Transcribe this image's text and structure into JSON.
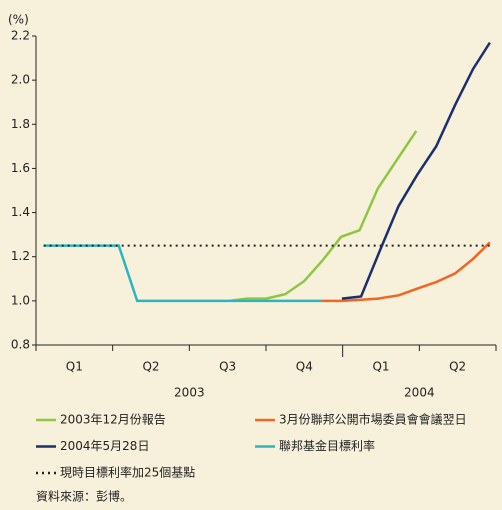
{
  "chart_data": {
    "type": "line",
    "y_unit": "(%)",
    "categories": [
      "Q1",
      "Q2",
      "Q3",
      "Q4",
      "Q1",
      "Q2"
    ],
    "year_labels": [
      "2003",
      "2004"
    ],
    "xlim": [
      0,
      6
    ],
    "ylim": [
      0.8,
      2.2
    ],
    "yticks": [
      0.8,
      {
        "value": 1.0,
        "label": "1.0"
      },
      1.2,
      1.4,
      1.6,
      1.8,
      {
        "value": 2.0,
        "label": "2.0"
      },
      2.2
    ],
    "series": [
      {
        "name": "2003年12月份報告",
        "color": "#8dc63f",
        "x": [
          2.52,
          2.75,
          3.0,
          3.25,
          3.5,
          3.73,
          3.98,
          4.22,
          4.46,
          4.71,
          4.96
        ],
        "values": [
          1.0,
          1.01,
          1.01,
          1.03,
          1.09,
          1.18,
          1.29,
          1.32,
          1.51,
          1.64,
          1.77
        ]
      },
      {
        "name": "3月份聯邦公開市場委員會會議翌日",
        "color": "#f26522",
        "x": [
          3.73,
          3.99,
          4.24,
          4.46,
          4.73,
          4.97,
          5.22,
          5.47,
          5.7,
          5.92
        ],
        "values": [
          1.0,
          1.0,
          1.005,
          1.01,
          1.025,
          1.055,
          1.085,
          1.125,
          1.19,
          1.265
        ]
      },
      {
        "name": "2004年5月28日",
        "color": "#1a2f6e",
        "x": [
          3.99,
          4.24,
          4.5,
          4.73,
          4.97,
          5.22,
          5.47,
          5.7,
          5.92
        ],
        "values": [
          1.01,
          1.02,
          1.24,
          1.43,
          1.57,
          1.7,
          1.89,
          2.05,
          2.17
        ]
      },
      {
        "name": "聯邦基金目標利率",
        "color": "#2bb5c0",
        "x": [
          0.1,
          1.08,
          1.32,
          3.73
        ],
        "values": [
          1.25,
          1.25,
          1.0,
          1.0
        ]
      },
      {
        "name": "現時目標利率加25個基點",
        "color": "#222222",
        "dash": "dotted",
        "x": [
          0.1,
          5.92
        ],
        "values": [
          1.25,
          1.25
        ]
      }
    ],
    "source": "資料來源：彭博。"
  }
}
